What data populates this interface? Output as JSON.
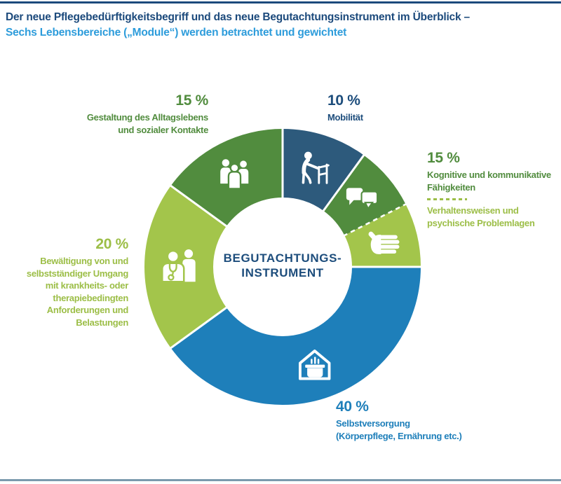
{
  "header": {
    "title_line1": "Der neue Pflegebedürftigkeitsbegriff und das neue Begutachtungsinstrument im Überblick –",
    "title_line2": "Sechs Lebensbereiche („Module“) werden betrachtet und gewichtet"
  },
  "colors": {
    "title_navy": "#1C4A7C",
    "title_blue": "#2D9CDB",
    "text_navy": "#1D4D7C",
    "navy_segment": "#2D5A7C",
    "blue": "#1E7FBA",
    "green": "#518C3E",
    "lime": "#A3C54B",
    "lime_text": "#9CBE47",
    "separator": "#FFFFFF",
    "bottom_rule": "#7B9AAD"
  },
  "chart_data": {
    "type": "pie",
    "subtype": "donut",
    "title": "Der neue Pflegebedürftigkeitsbegriff und das neue Begutachtungsinstrument im Überblick – Sechs Lebensbereiche („Module“) werden betrachtet und gewichtet",
    "unit": "%",
    "start_angle_deg": 0,
    "direction": "clockwise",
    "center_label": {
      "line1": "BEGUTACHTUNGS-",
      "line2": "INSTRUMENT"
    },
    "segments": [
      {
        "name": "Mobilität",
        "value": 10,
        "color": "#2D5A7C",
        "icon": "walker-icon",
        "boundary_after": "solid"
      },
      {
        "name": "Kognitive und kommunikative Fähigkeiten",
        "value": 7.5,
        "color": "#518C3E",
        "icon": "speech-bubbles-icon",
        "boundary_after": "dashed"
      },
      {
        "name": "Verhaltensweisen und psychische Problemlagen",
        "value": 7.5,
        "color": "#A3C54B",
        "icon": "hand-icon",
        "boundary_after": "solid"
      },
      {
        "name": "Selbstversorgung (Körperpflege, Ernährung etc.)",
        "value": 40,
        "color": "#1E7FBA",
        "icon": "house-pot-icon",
        "boundary_after": "solid"
      },
      {
        "name": "Bewältigung von und selbstständiger Umgang mit krankheits- oder therapiebedingten Anforderungen und Belastungen",
        "value": 20,
        "color": "#A3C54B",
        "icon": "doctor-patient-icon",
        "boundary_after": "solid"
      },
      {
        "name": "Gestaltung des Alltagslebens und sozialer Kontakte",
        "value": 15,
        "color": "#518C3E",
        "icon": "people-group-icon",
        "boundary_after": "solid"
      }
    ]
  },
  "callouts": {
    "mobilitaet": {
      "percent": "10 %",
      "lines": [
        "Mobilität"
      ]
    },
    "kognitiv": {
      "percent": "15 %",
      "lines": [
        "Kognitive und kommunikative",
        "Fähigkeiten"
      ],
      "sub_lines": [
        "Verhaltensweisen und",
        "psychische Problemlagen"
      ]
    },
    "selbstversorgung": {
      "percent": "40 %",
      "lines": [
        "Selbstversorgung",
        "(Körperpflege, Ernährung etc.)"
      ]
    },
    "bewaeltigung": {
      "percent": "20 %",
      "lines": [
        "Bewältigung von und",
        "selbstständiger Umgang",
        "mit krankheits- oder",
        "therapiebedingten",
        "Anforderungen und",
        "Belastungen"
      ]
    },
    "gestaltung": {
      "percent": "15 %",
      "lines": [
        "Gestaltung des Alltagslebens",
        "und sozialer Kontakte"
      ]
    }
  }
}
